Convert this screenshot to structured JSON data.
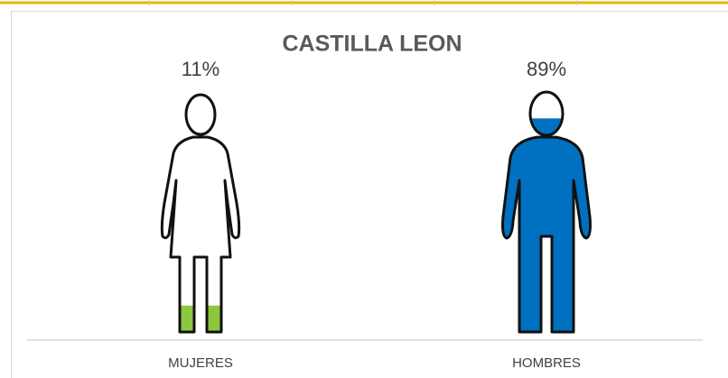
{
  "chart_data": {
    "type": "pictograph",
    "title": "CASTILLA LEON",
    "categories": [
      "MUJERES",
      "HOMBRES"
    ],
    "values": [
      11,
      89
    ],
    "value_labels": [
      "11%",
      "89%"
    ],
    "colors": [
      "#8dc63f",
      "#0070c0"
    ],
    "ylim": [
      0,
      100
    ]
  }
}
